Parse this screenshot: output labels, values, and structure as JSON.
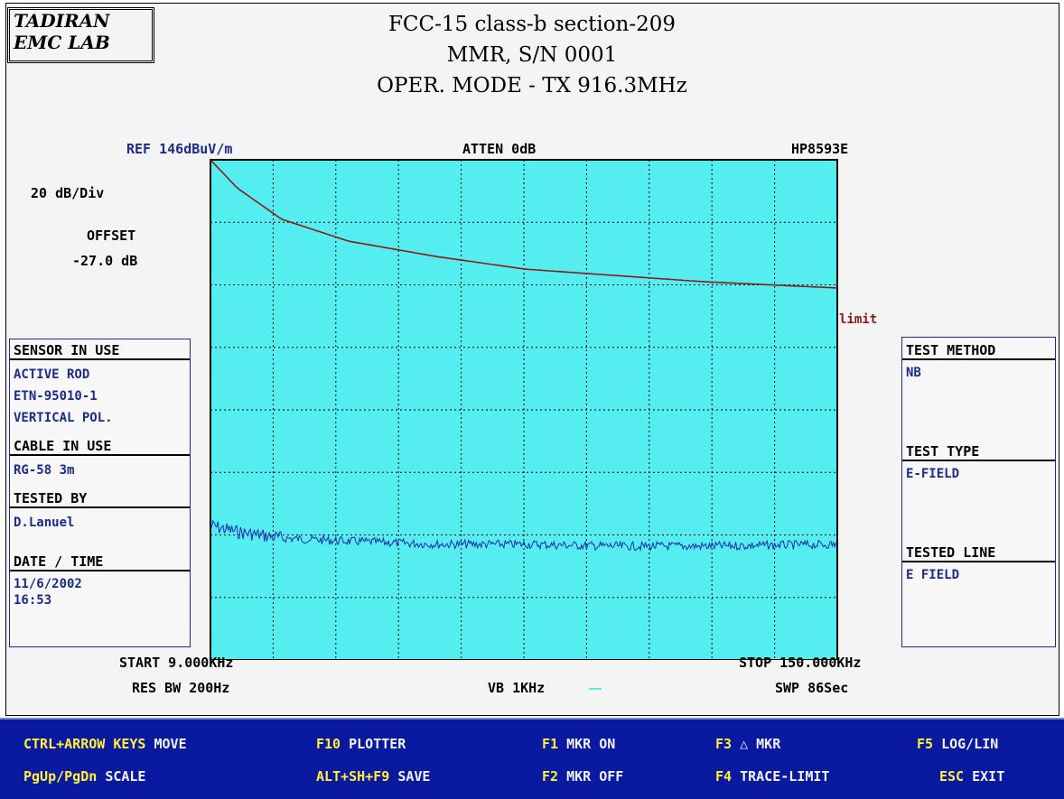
{
  "logo": {
    "line1": "TADIRAN",
    "line2": "EMC LAB"
  },
  "title": {
    "line1": "FCC-15 class-b section-209",
    "line2": "MMR, S/N 0001",
    "line3": "OPER. MODE - TX 916.3MHz"
  },
  "instrument": {
    "ref": "REF 146dBuV/m",
    "atten": "ATTEN 0dB",
    "model": "HP8593E",
    "scale": "20 dB/Div",
    "offset_label": "OFFSET",
    "offset_value": "-27.0 dB",
    "start": "START 9.000KHz",
    "stop": "STOP 150.000KHz",
    "res_bw": "RES BW 200Hz",
    "vb": "VB 1KHz",
    "swp": "SWP 86Sec"
  },
  "left_panel": {
    "sensor_header": "SENSOR IN USE",
    "sensor_lines": [
      "ACTIVE ROD",
      "ETN-95010-1",
      "VERTICAL POL."
    ],
    "cable_header": "CABLE IN USE",
    "cable_value": "RG-58 3m",
    "tested_by_header": "TESTED BY",
    "tested_by_value": "D.Lanuel",
    "date_header": "DATE / TIME",
    "date_value": "11/6/2002",
    "time_value": "16:53"
  },
  "right_panel": {
    "method_header": "TEST METHOD",
    "method_value": "NB",
    "type_header": "TEST TYPE",
    "type_value": "E-FIELD",
    "line_header": "TESTED LINE",
    "line_value": "E FIELD"
  },
  "colors": {
    "plot_bg": "#55eef0",
    "limit_line": "#8b1a1a",
    "trace": "#1c2bb0",
    "footer_bg": "#0a1aa0",
    "key_yellow": "#ffef3a"
  },
  "chart_data": {
    "type": "line",
    "title": "",
    "xlabel": "",
    "ylabel": "",
    "x_range_khz": [
      9.0,
      150.0
    ],
    "divisions": {
      "x": 10,
      "y": 8
    },
    "grid": true,
    "series": [
      {
        "name": "limit",
        "x_khz": [
          9,
          15,
          25,
          40,
          60,
          80,
          100,
          120,
          150
        ],
        "y_div_from_top": [
          0.0,
          0.45,
          0.95,
          1.3,
          1.55,
          1.75,
          1.85,
          1.95,
          2.05
        ]
      },
      {
        "values_desc": "noise floor trace",
        "x_khz": [
          9,
          15,
          25,
          40,
          60,
          80,
          100,
          120,
          150
        ],
        "y_div_from_top": [
          5.85,
          5.95,
          6.05,
          6.1,
          6.15,
          6.15,
          6.18,
          6.18,
          6.15
        ]
      }
    ],
    "limit_label": "limit"
  },
  "footer": {
    "row1": [
      {
        "key": "CTRL+ARROW KEYS",
        "action": "MOVE"
      },
      {
        "key": "F10",
        "action": "PLOTTER"
      },
      {
        "key": "F1",
        "action": "MKR ON"
      },
      {
        "key": "F3",
        "action": "△ MKR"
      },
      {
        "key": "F5",
        "action": "LOG/LIN"
      }
    ],
    "row2": [
      {
        "key": "PgUp/PgDn",
        "action": "SCALE"
      },
      {
        "key": "ALT+SH+F9",
        "action": "SAVE"
      },
      {
        "key": "F2",
        "action": "MKR OFF"
      },
      {
        "key": "F4",
        "action": "TRACE-LIMIT"
      },
      {
        "key": "ESC",
        "action": "EXIT"
      }
    ]
  }
}
